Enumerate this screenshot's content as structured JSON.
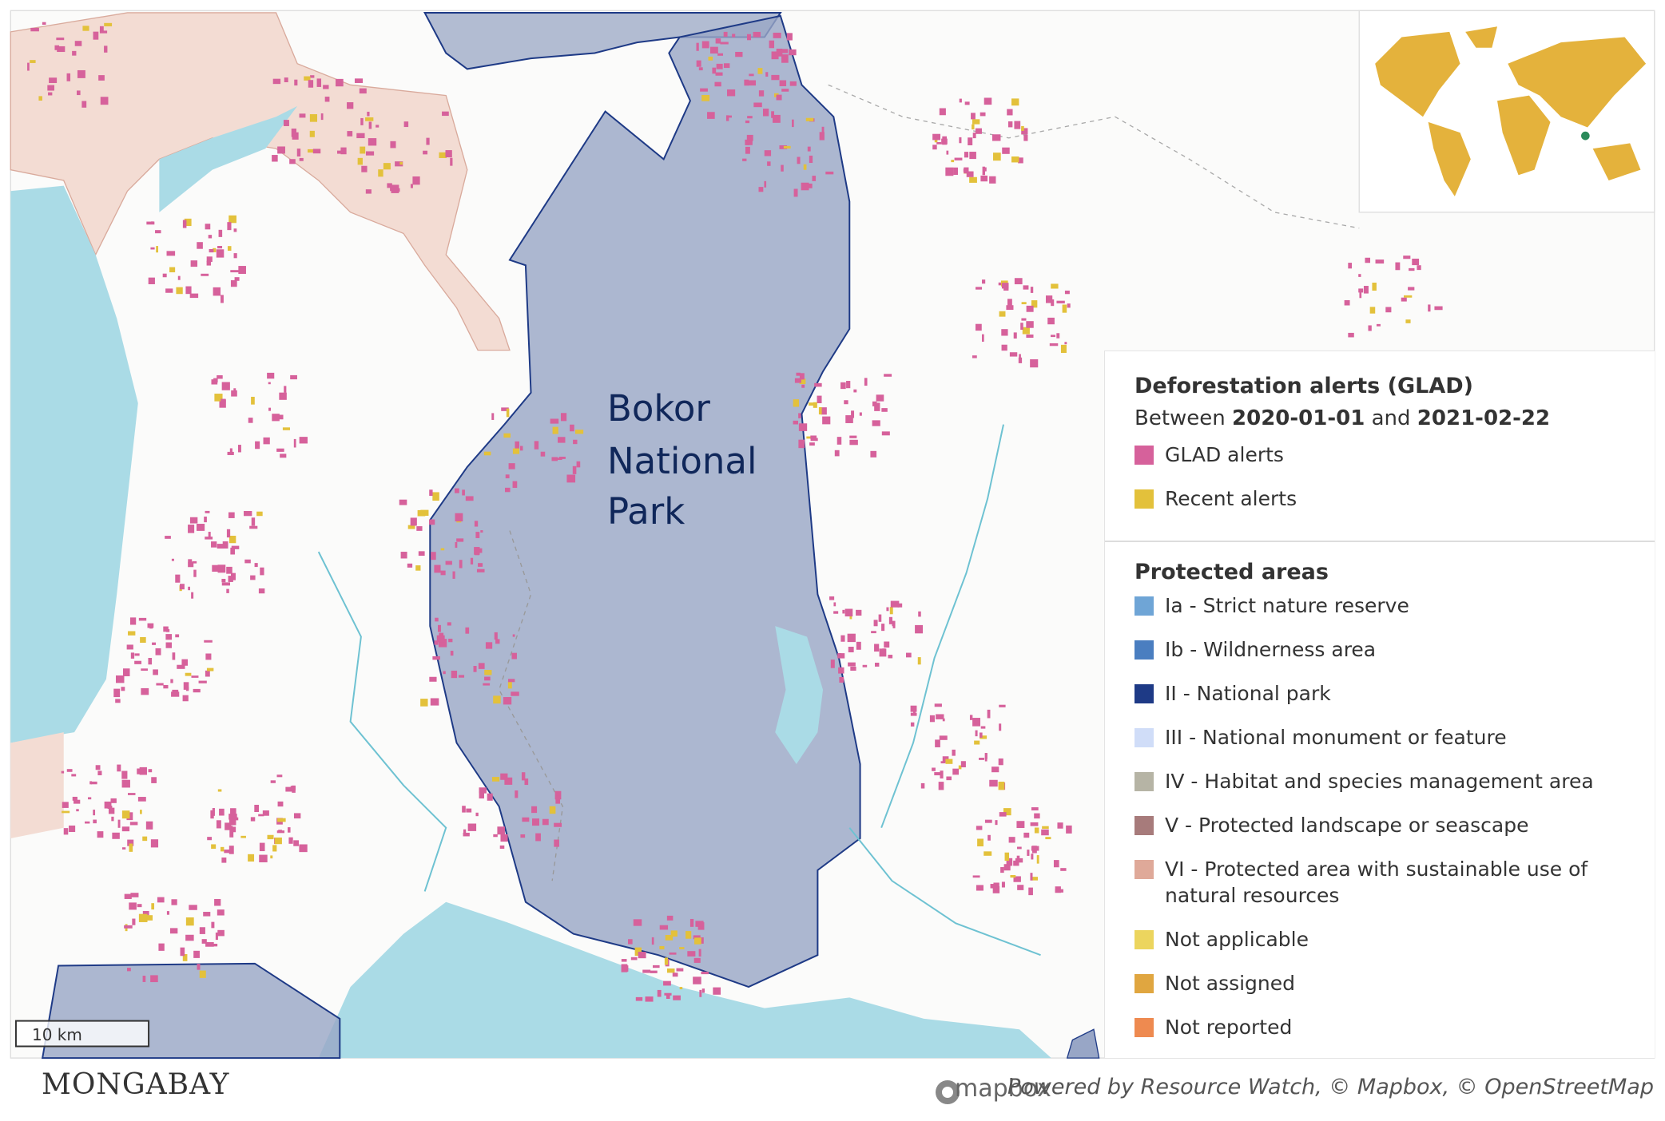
{
  "map": {
    "label_lines": [
      "Bokor",
      "National",
      "Park"
    ],
    "scale_label": "10 km"
  },
  "legend": {
    "alerts": {
      "title": "Deforestation alerts (GLAD)",
      "between": "Between",
      "start": "2020-01-01",
      "and": "and",
      "end": "2021-02-22",
      "items": [
        {
          "label": "GLAD alerts",
          "color": "#d6619b"
        },
        {
          "label": "Recent alerts",
          "color": "#e3c13b"
        }
      ]
    },
    "protected": {
      "title": "Protected areas",
      "items": [
        {
          "label": "Ia - Strict nature reserve",
          "color": "#6fa5d6"
        },
        {
          "label": "Ib - Wildnerness area",
          "color": "#4a7ec0"
        },
        {
          "label": "II - National park",
          "color": "#1e3a86"
        },
        {
          "label": "III - National monument or feature",
          "color": "#d0ddf8"
        },
        {
          "label": "IV - Habitat and species management area",
          "color": "#b6b4a5"
        },
        {
          "label": "V - Protected landscape or seascape",
          "color": "#a77b7b"
        },
        {
          "label": "VI - Protected area with sustainable use of natural resources",
          "color": "#dfa999"
        },
        {
          "label": "Not applicable",
          "color": "#ecd55e"
        },
        {
          "label": "Not assigned",
          "color": "#e0a640"
        },
        {
          "label": "Not reported",
          "color": "#ee8a50"
        }
      ]
    }
  },
  "footer": {
    "brand": "MONGABAY",
    "mapbox": "mapbox",
    "credit": "Powered by Resource Watch, © Mapbox, © OpenStreetMap"
  }
}
